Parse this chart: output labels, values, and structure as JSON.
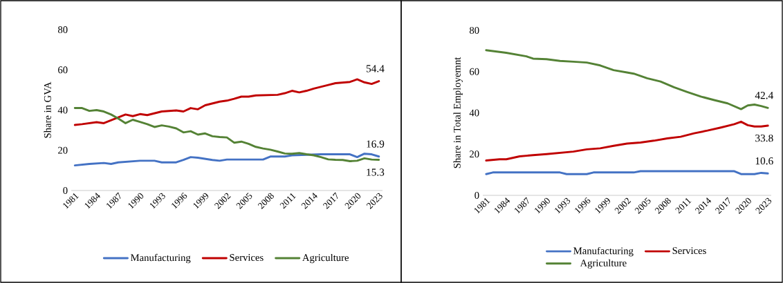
{
  "chart_data": [
    {
      "type": "line",
      "ylabel": "Share in GVA",
      "xlim": [
        1980.5,
        2023.5
      ],
      "ylim": [
        0,
        80
      ],
      "xticks": [
        1981,
        1984,
        1987,
        1990,
        1993,
        1996,
        1999,
        2002,
        2005,
        2008,
        2011,
        2014,
        2017,
        2020,
        2023
      ],
      "yticks": [
        0,
        20,
        40,
        60,
        80
      ],
      "legend": "bottom",
      "series": [
        {
          "name": "Manufacturing",
          "color": "#4472c4",
          "x": [
            1981,
            1983,
            1985,
            1986,
            1987,
            1990,
            1992,
            1993,
            1995,
            1996,
            1997,
            1998,
            2000,
            2001,
            2002,
            2007,
            2008,
            2010,
            2011,
            2015,
            2019,
            2020,
            2021,
            2022,
            2023
          ],
          "values": [
            12.5,
            13.2,
            13.7,
            13.2,
            14,
            14.8,
            14.8,
            14,
            14,
            15.2,
            16.6,
            16.3,
            15.2,
            14.8,
            15.4,
            15.4,
            16.9,
            16.9,
            17.5,
            18,
            18,
            16.6,
            18.3,
            18,
            16.9
          ],
          "value_labels": [
            null,
            null,
            null,
            null,
            null,
            null,
            null,
            null,
            null,
            null,
            null,
            null,
            null,
            null,
            null,
            null,
            null,
            null,
            null,
            null,
            null,
            null,
            null,
            null,
            "16.9"
          ]
        },
        {
          "name": "Services",
          "color": "#c00000",
          "x": [
            1981,
            1982,
            1984,
            1985,
            1988,
            1989,
            1990,
            1991,
            1993,
            1995,
            1996,
            1997,
            1998,
            1999,
            2001,
            2002,
            2003,
            2004,
            2005,
            2006,
            2009,
            2010,
            2011,
            2012,
            2013,
            2014,
            2016,
            2017,
            2019,
            2020,
            2021,
            2022,
            2023
          ],
          "values": [
            32.6,
            33,
            34,
            33.5,
            37.8,
            37,
            38,
            37.5,
            39.3,
            39.8,
            39.3,
            41,
            40.4,
            42.4,
            44.2,
            44.7,
            45.6,
            46.7,
            46.7,
            47.3,
            47.6,
            48.4,
            49.6,
            48.8,
            49.6,
            50.7,
            52.5,
            53.4,
            54,
            55.3,
            53.8,
            53,
            54.4
          ],
          "value_labels": [
            null,
            null,
            null,
            null,
            null,
            null,
            null,
            null,
            null,
            null,
            null,
            null,
            null,
            null,
            null,
            null,
            null,
            null,
            null,
            null,
            null,
            null,
            null,
            null,
            null,
            null,
            null,
            null,
            null,
            null,
            null,
            null,
            "54.4"
          ]
        },
        {
          "name": "Agriculture",
          "color": "#548235",
          "x": [
            1981,
            1982,
            1983,
            1984,
            1985,
            1986,
            1987,
            1988,
            1989,
            1990,
            1991,
            1992,
            1993,
            1994,
            1995,
            1996,
            1997,
            1998,
            1999,
            2000,
            2001,
            2002,
            2003,
            2004,
            2005,
            2006,
            2007,
            2008,
            2009,
            2010,
            2011,
            2012,
            2013,
            2014,
            2015,
            2016,
            2017,
            2018,
            2019,
            2020,
            2021,
            2022,
            2023
          ],
          "values": [
            41,
            41,
            39.6,
            40,
            39.3,
            37.8,
            35.8,
            33.5,
            35.2,
            34.1,
            33,
            31.6,
            32.4,
            31.8,
            30.9,
            28.9,
            29.5,
            27.8,
            28.4,
            27,
            26.6,
            26.4,
            23.8,
            24.3,
            23.2,
            21.7,
            20.9,
            20.3,
            19.4,
            18.4,
            18.3,
            18.6,
            18,
            17.5,
            16.6,
            15.5,
            15.3,
            15.2,
            14.6,
            14.8,
            16,
            15.4,
            15.3
          ],
          "value_labels": [
            null,
            null,
            null,
            null,
            null,
            null,
            null,
            null,
            null,
            null,
            null,
            null,
            null,
            null,
            null,
            null,
            null,
            null,
            null,
            null,
            null,
            null,
            null,
            null,
            null,
            null,
            null,
            null,
            null,
            null,
            null,
            null,
            null,
            null,
            null,
            null,
            null,
            null,
            null,
            null,
            null,
            null,
            "15.3"
          ]
        }
      ]
    },
    {
      "type": "line",
      "ylabel": "Share in Total Employemnt",
      "xlim": [
        1980.5,
        2023.5
      ],
      "ylim": [
        0,
        80
      ],
      "xticks": [
        1981,
        1984,
        1987,
        1990,
        1993,
        1996,
        1999,
        2002,
        2005,
        2008,
        2011,
        2014,
        2017,
        2020,
        2023
      ],
      "yticks": [
        0,
        20,
        40,
        60,
        80
      ],
      "legend": "bottom",
      "series": [
        {
          "name": "Manufacturing",
          "color": "#4472c4",
          "x": [
            1981,
            1982,
            1992,
            1993,
            1996,
            1997,
            2003,
            2004,
            2018,
            2019,
            2021,
            2022,
            2023
          ],
          "values": [
            10.3,
            11.1,
            11.1,
            10.3,
            10.3,
            11.1,
            11.1,
            11.7,
            11.7,
            10.3,
            10.3,
            10.9,
            10.6
          ],
          "value_labels": [
            null,
            null,
            null,
            null,
            null,
            null,
            null,
            null,
            null,
            null,
            null,
            null,
            "10.6"
          ]
        },
        {
          "name": "Services",
          "color": "#c00000",
          "x": [
            1981,
            1983,
            1984,
            1986,
            1988,
            1990,
            1992,
            1994,
            1996,
            1998,
            2000,
            2002,
            2004,
            2006,
            2008,
            2010,
            2012,
            2014,
            2016,
            2018,
            2019,
            2020,
            2021,
            2022,
            2023
          ],
          "values": [
            16.9,
            17.5,
            17.5,
            18.9,
            19.5,
            20,
            20.6,
            21.2,
            22.3,
            22.8,
            24,
            25.1,
            25.6,
            26.5,
            27.6,
            28.4,
            30.1,
            31.4,
            32.9,
            34.5,
            35.7,
            34,
            33.4,
            33.4,
            33.8
          ],
          "value_labels": [
            null,
            null,
            null,
            null,
            null,
            null,
            null,
            null,
            null,
            null,
            null,
            null,
            null,
            null,
            null,
            null,
            null,
            null,
            null,
            null,
            null,
            null,
            null,
            null,
            "33.8"
          ]
        },
        {
          "name": "Agriculture",
          "color": "#548235",
          "x": [
            1981,
            1984,
            1987,
            1988,
            1990,
            1992,
            1994,
            1996,
            1998,
            2000,
            2002,
            2003,
            2005,
            2007,
            2009,
            2011,
            2013,
            2015,
            2017,
            2018,
            2019,
            2020,
            2021,
            2022,
            2023
          ],
          "values": [
            70.4,
            69.1,
            67.4,
            66.3,
            66,
            65.2,
            64.8,
            64.4,
            63,
            60.7,
            59.6,
            59,
            56.8,
            55.2,
            52.4,
            50.1,
            47.9,
            46.2,
            44.6,
            43.2,
            41.8,
            43.6,
            44,
            43.3,
            42.4
          ],
          "value_labels": [
            null,
            null,
            null,
            null,
            null,
            null,
            null,
            null,
            null,
            null,
            null,
            null,
            null,
            null,
            null,
            null,
            null,
            null,
            null,
            null,
            null,
            null,
            null,
            null,
            "42.4"
          ]
        }
      ]
    }
  ]
}
